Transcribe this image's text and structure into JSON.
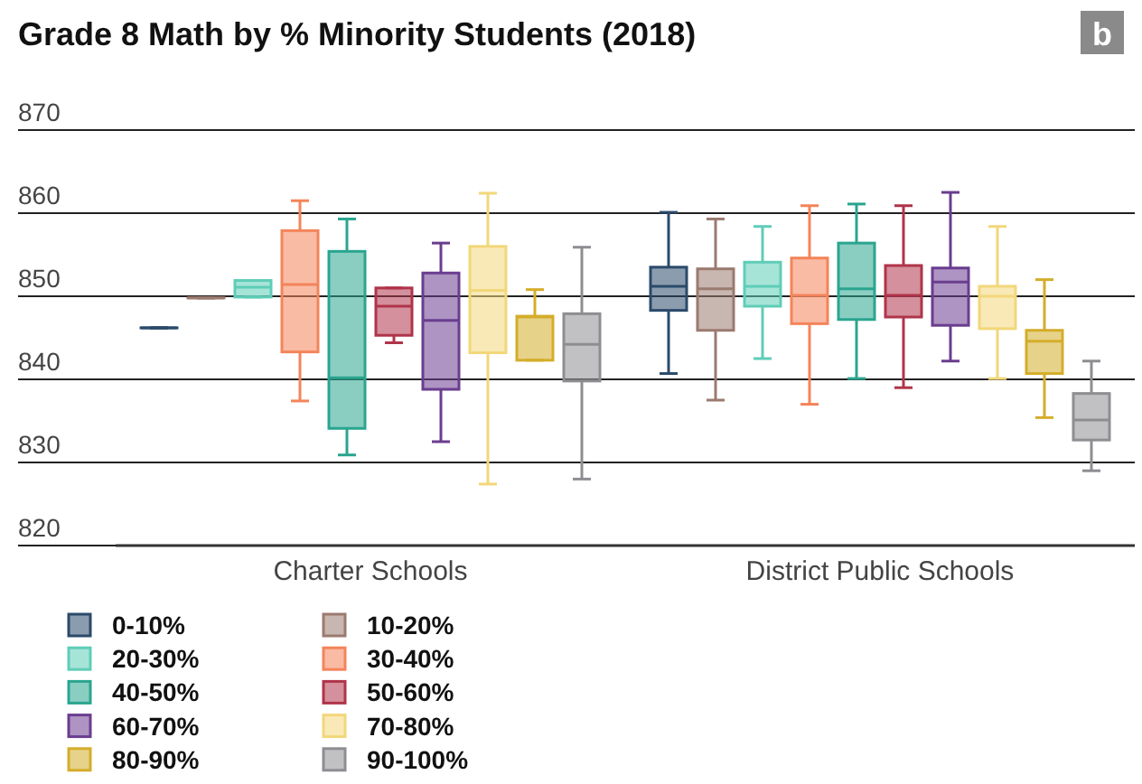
{
  "chart_data": {
    "type": "box",
    "title": "Grade 8 Math by % Minority Students (2018)",
    "annotations": [
      "b"
    ],
    "categories": [
      "Charter Schools",
      "District Public Schools"
    ],
    "ylim": [
      820,
      870
    ],
    "yticks": [
      820,
      830,
      840,
      850,
      860,
      870
    ],
    "grid": "y",
    "legend": "bottom",
    "series": [
      {
        "name": "0-10%",
        "color": "#2b4a6b",
        "boxes": [
          {
            "low": 846.2,
            "q1": 846.2,
            "median": 846.2,
            "q3": 846.2,
            "high": 846.2
          },
          {
            "low": 840.7,
            "q1": 848.3,
            "median": 851.2,
            "q3": 853.5,
            "high": 860.1
          }
        ]
      },
      {
        "name": "10-20%",
        "color": "#9b7a70",
        "boxes": [
          {
            "low": 849.8,
            "q1": 849.8,
            "median": 849.8,
            "q3": 849.8,
            "high": 849.8
          },
          {
            "low": 837.5,
            "q1": 845.9,
            "median": 850.9,
            "q3": 853.3,
            "high": 859.3
          }
        ]
      },
      {
        "name": "20-30%",
        "color": "#5fcdb8",
        "boxes": [
          {
            "low": 849.9,
            "q1": 849.9,
            "median": 851.1,
            "q3": 851.9,
            "high": 851.9
          },
          {
            "low": 842.5,
            "q1": 848.8,
            "median": 851.2,
            "q3": 854.1,
            "high": 858.4
          }
        ]
      },
      {
        "name": "30-40%",
        "color": "#f4845a",
        "boxes": [
          {
            "low": 837.4,
            "q1": 843.3,
            "median": 851.4,
            "q3": 857.9,
            "high": 861.5
          },
          {
            "low": 837.0,
            "q1": 846.7,
            "median": 850.1,
            "q3": 854.6,
            "high": 860.9
          }
        ]
      },
      {
        "name": "40-50%",
        "color": "#2aa58f",
        "boxes": [
          {
            "low": 830.9,
            "q1": 834.1,
            "median": 840.2,
            "q3": 855.4,
            "high": 859.3
          },
          {
            "low": 840.1,
            "q1": 847.2,
            "median": 850.9,
            "q3": 856.4,
            "high": 861.1
          }
        ]
      },
      {
        "name": "50-60%",
        "color": "#b0344a",
        "boxes": [
          {
            "low": 844.4,
            "q1": 845.3,
            "median": 848.8,
            "q3": 851.0,
            "high": 851.0
          },
          {
            "low": 839.0,
            "q1": 847.5,
            "median": 850.1,
            "q3": 853.7,
            "high": 860.9
          }
        ]
      },
      {
        "name": "60-70%",
        "color": "#6a3d8f",
        "boxes": [
          {
            "low": 832.5,
            "q1": 838.8,
            "median": 847.1,
            "q3": 852.8,
            "high": 856.4
          },
          {
            "low": 842.2,
            "q1": 846.5,
            "median": 851.7,
            "q3": 853.4,
            "high": 862.5
          }
        ]
      },
      {
        "name": "70-80%",
        "color": "#f2d77a",
        "boxes": [
          {
            "low": 827.4,
            "q1": 843.2,
            "median": 850.7,
            "q3": 856.0,
            "high": 862.4
          },
          {
            "low": 840.1,
            "q1": 846.1,
            "median": 850.0,
            "q3": 851.2,
            "high": 858.4
          }
        ]
      },
      {
        "name": "80-90%",
        "color": "#d4ad2a",
        "boxes": [
          {
            "low": 842.3,
            "q1": 842.3,
            "median": 847.5,
            "q3": 847.6,
            "high": 850.8
          },
          {
            "low": 835.4,
            "q1": 840.7,
            "median": 844.6,
            "q3": 845.9,
            "high": 852.0
          }
        ]
      },
      {
        "name": "90-100%",
        "color": "#8e8e92",
        "boxes": [
          {
            "low": 828.0,
            "q1": 839.8,
            "median": 844.2,
            "q3": 847.9,
            "high": 855.9
          },
          {
            "low": 829.0,
            "q1": 832.7,
            "median": 835.1,
            "q3": 838.3,
            "high": 842.2
          }
        ]
      }
    ]
  }
}
